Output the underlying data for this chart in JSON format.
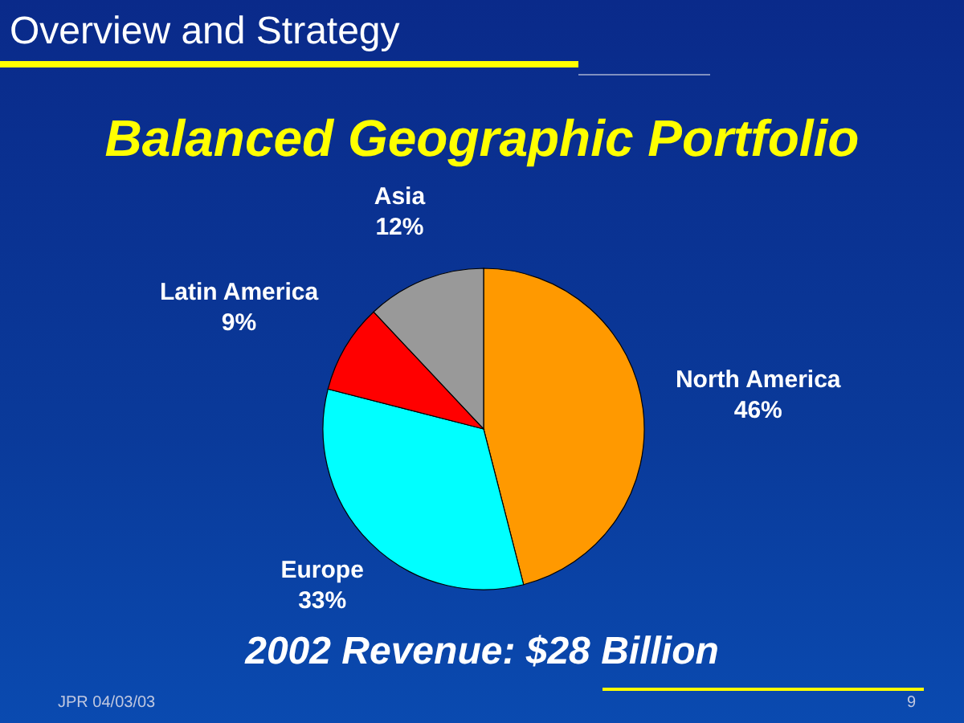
{
  "chart_data": {
    "type": "pie",
    "subtitle": "Overview and Strategy",
    "title": "Balanced Geographic Portfolio",
    "categories": [
      "North America",
      "Europe",
      "Latin America",
      "Asia"
    ],
    "values": [
      46,
      33,
      9,
      12
    ],
    "value_labels": [
      "46%",
      "33%",
      "9%",
      "12%"
    ],
    "colors": [
      "#ff9900",
      "#00ffff",
      "#ff0000",
      "#999999"
    ],
    "legend": false,
    "annotations": [
      "2002 Revenue: $28 Billion",
      "JPR 04/03/03",
      "9"
    ]
  }
}
